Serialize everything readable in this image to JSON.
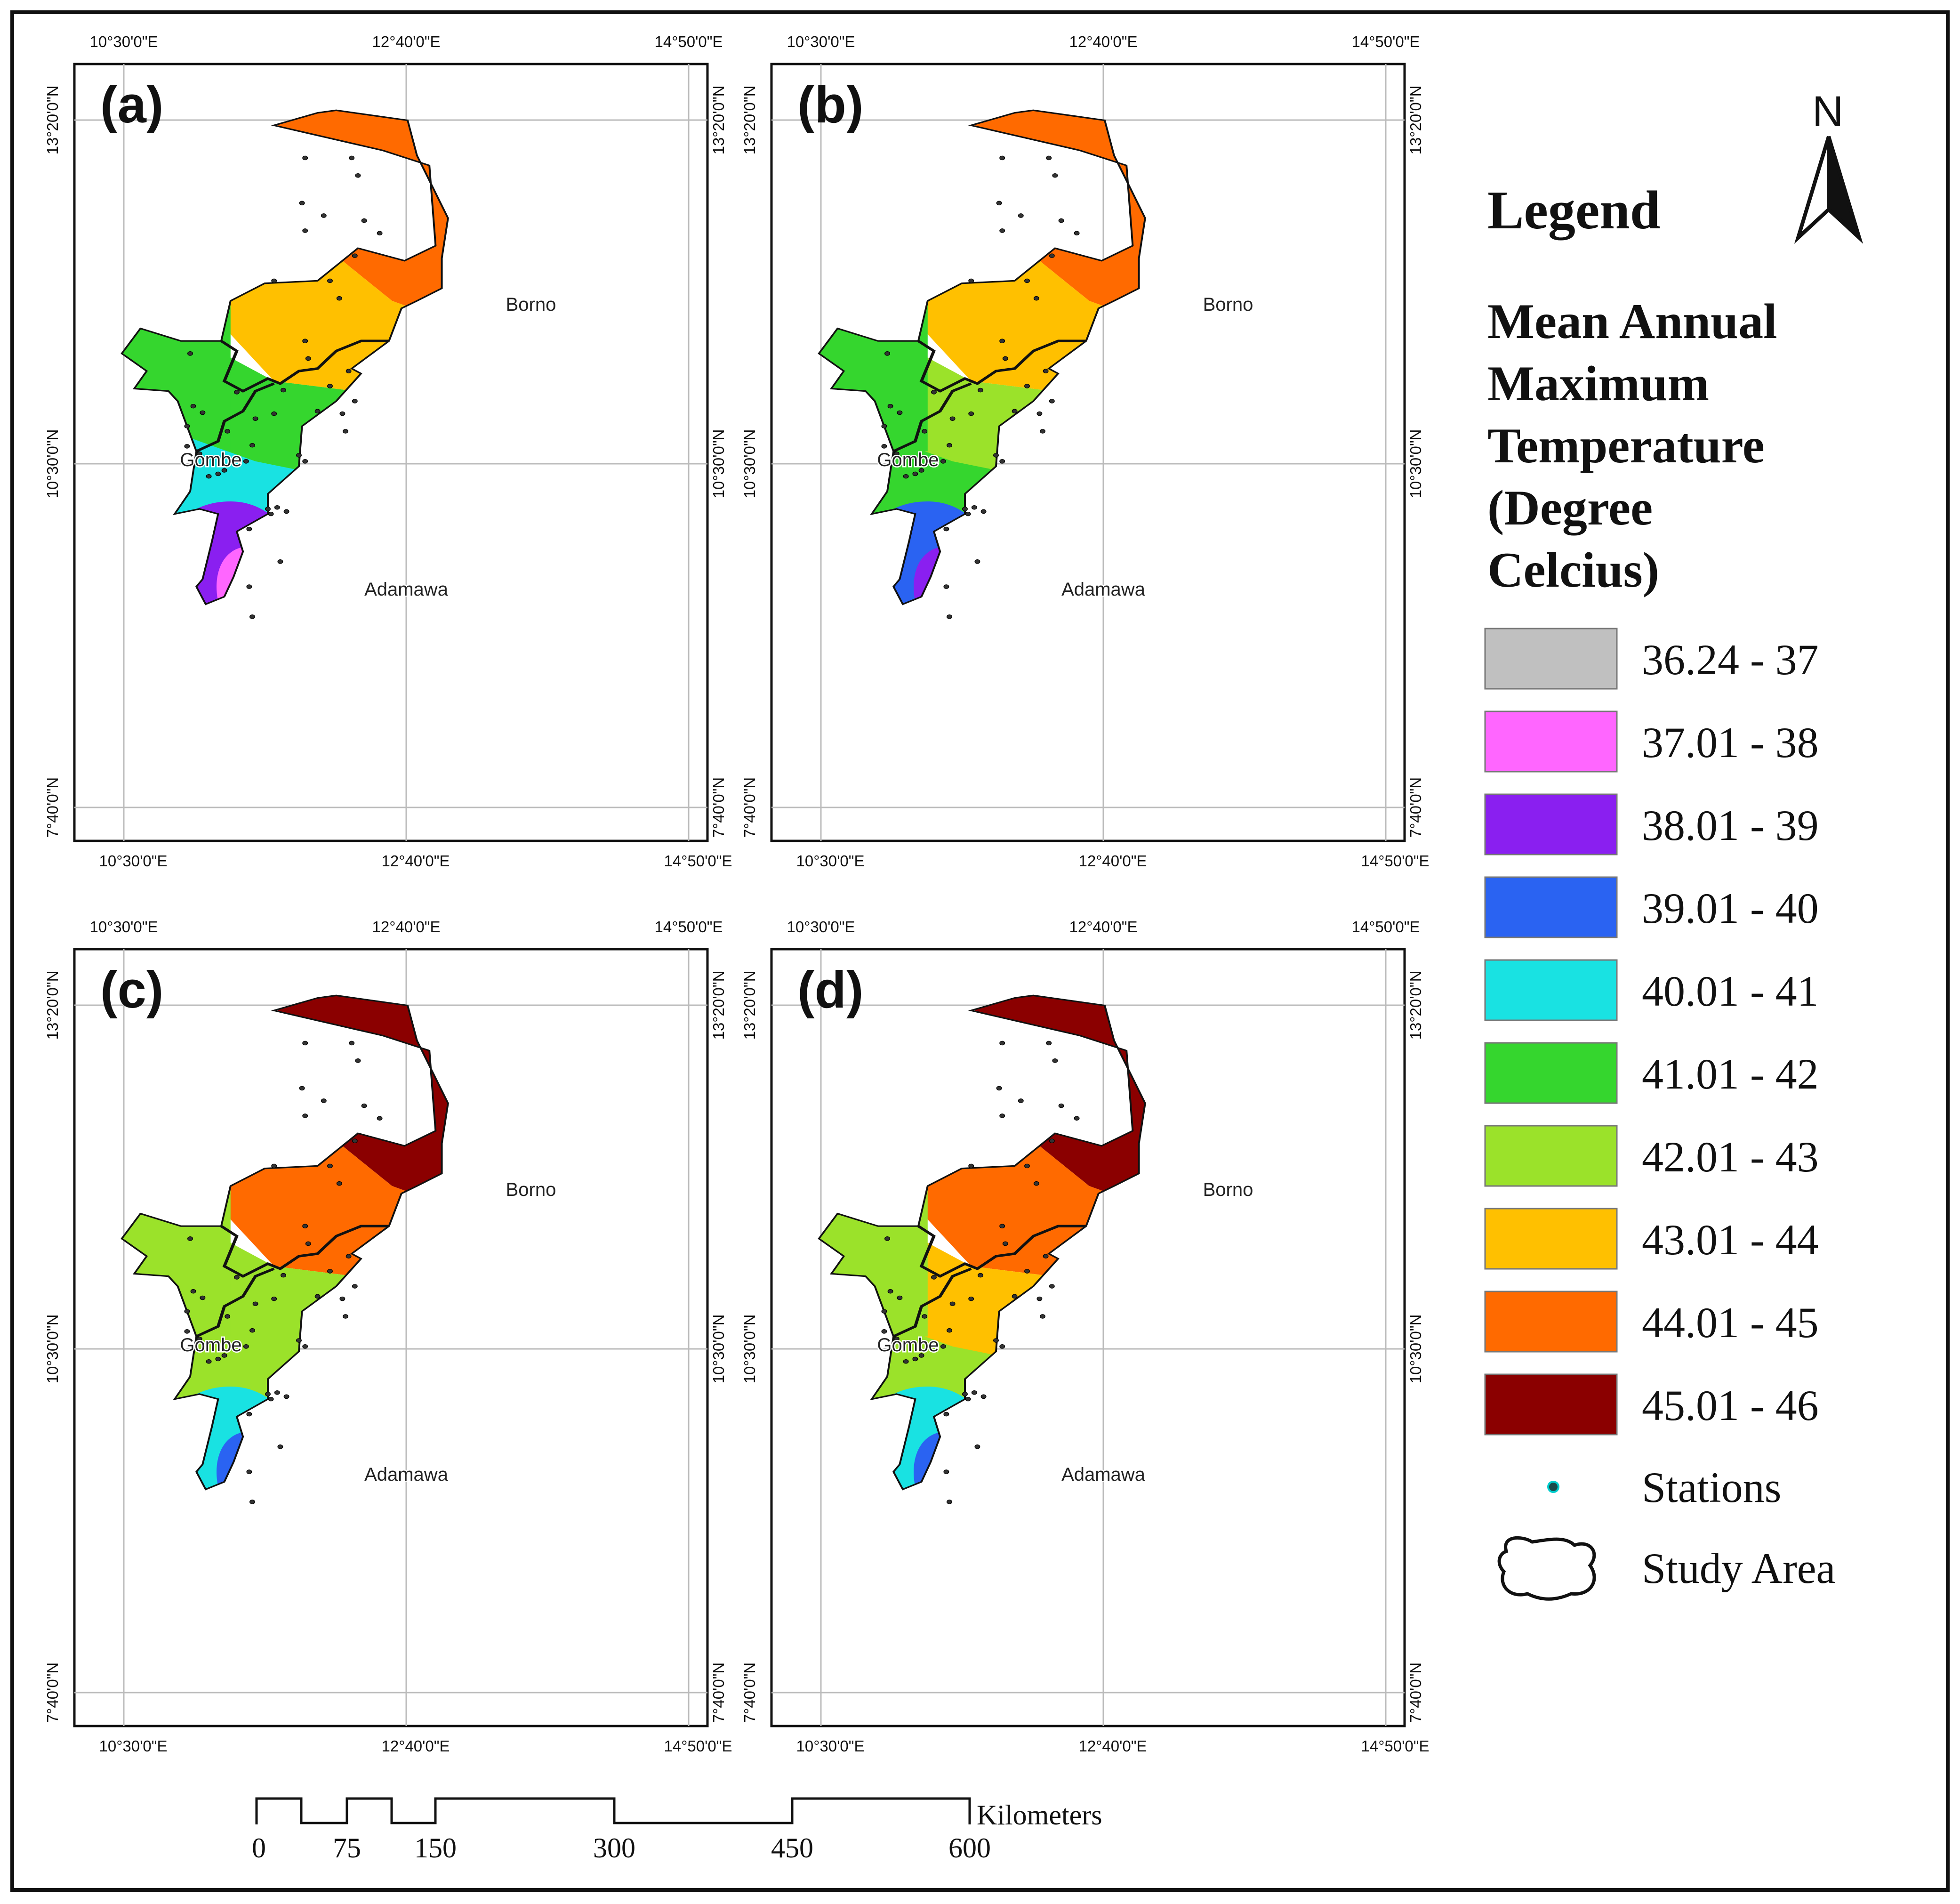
{
  "panels": [
    {
      "label": "(a)",
      "zones": {
        "top": "#ff6a00",
        "north": "#ffc000",
        "mid": "#35d62e",
        "gombe": "#35d62e",
        "low": "#19e2e2",
        "south": "#8a1ff0",
        "tip": "#ff66ff"
      }
    },
    {
      "label": "(b)",
      "zones": {
        "top": "#ff6a00",
        "north": "#ffc000",
        "mid": "#9be22a",
        "gombe": "#35d62e",
        "low": "#35d62e",
        "south": "#2a63f2",
        "tip": "#8a1ff0"
      }
    },
    {
      "label": "(c)",
      "zones": {
        "top": "#8b0000",
        "north": "#ff6a00",
        "mid": "#9be22a",
        "gombe": "#9be22a",
        "low": "#9be22a",
        "south": "#19e2e2",
        "tip": "#2a63f2"
      }
    },
    {
      "label": "(d)",
      "zones": {
        "top": "#8b0000",
        "north": "#ff6a00",
        "mid": "#ffc000",
        "gombe": "#9be22a",
        "low": "#9be22a",
        "south": "#19e2e2",
        "tip": "#2a63f2"
      }
    }
  ],
  "coords": {
    "lon": [
      "10°30'0\"E",
      "12°40'0\"E",
      "14°50'0\"E"
    ],
    "lat": [
      "13°20'0\"N",
      "10°30'0\"N",
      "7°40'0\"N"
    ]
  },
  "states": [
    "Borno",
    "Gombe",
    "Adamawa"
  ],
  "legend": {
    "title": "Legend",
    "subtitle_lines": [
      "Mean Annual",
      "Maximum",
      "Temperature",
      "(Degree",
      "Celcius)"
    ],
    "classes": [
      {
        "label": "36.24 - 37",
        "color": "#c0c0c0"
      },
      {
        "label": "37.01 - 38",
        "color": "#ff66ff"
      },
      {
        "label": "38.01 - 39",
        "color": "#8a1ff0"
      },
      {
        "label": "39.01 - 40",
        "color": "#2a63f2"
      },
      {
        "label": "40.01 - 41",
        "color": "#19e2e2"
      },
      {
        "label": "41.01 - 42",
        "color": "#35d62e"
      },
      {
        "label": "42.01 - 43",
        "color": "#9be22a"
      },
      {
        "label": "43.01 - 44",
        "color": "#ffc000"
      },
      {
        "label": "44.01 - 45",
        "color": "#ff6a00"
      },
      {
        "label": "45.01 - 46",
        "color": "#8b0000"
      }
    ],
    "stations_label": "Stations",
    "study_area_label": "Study Area"
  },
  "north_arrow": "N",
  "scale_bar": {
    "ticks": [
      "0",
      "75",
      "150",
      "300",
      "450",
      "600"
    ],
    "unit": "Kilometers"
  }
}
